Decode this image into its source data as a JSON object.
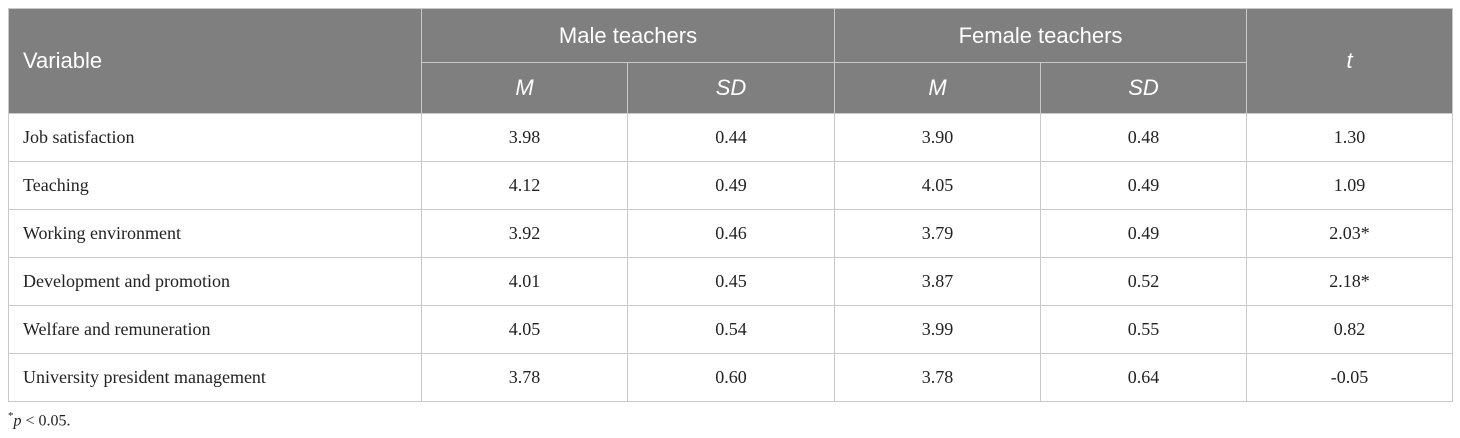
{
  "table": {
    "header": {
      "variable": "Variable",
      "groups": [
        "Male teachers",
        "Female teachers"
      ],
      "subheaders": [
        "M",
        "SD",
        "M",
        "SD"
      ],
      "t": "t"
    },
    "rows": [
      [
        "Job satisfaction",
        "3.98",
        "0.44",
        "3.90",
        "0.48",
        "1.30"
      ],
      [
        "Teaching",
        "4.12",
        "0.49",
        "4.05",
        "0.49",
        "1.09"
      ],
      [
        "Working environment",
        "3.92",
        "0.46",
        "3.79",
        "0.49",
        "2.03*"
      ],
      [
        "Development and promotion",
        "4.01",
        "0.45",
        "3.87",
        "0.52",
        "2.18*"
      ],
      [
        "Welfare and remuneration",
        "4.05",
        "0.54",
        "3.99",
        "0.55",
        "0.82"
      ],
      [
        "University president management",
        "3.78",
        "0.60",
        "3.78",
        "0.64",
        "-0.05"
      ]
    ]
  },
  "footnote": {
    "symbol": "*",
    "variable": "p",
    "condition": " < 0.05."
  }
}
